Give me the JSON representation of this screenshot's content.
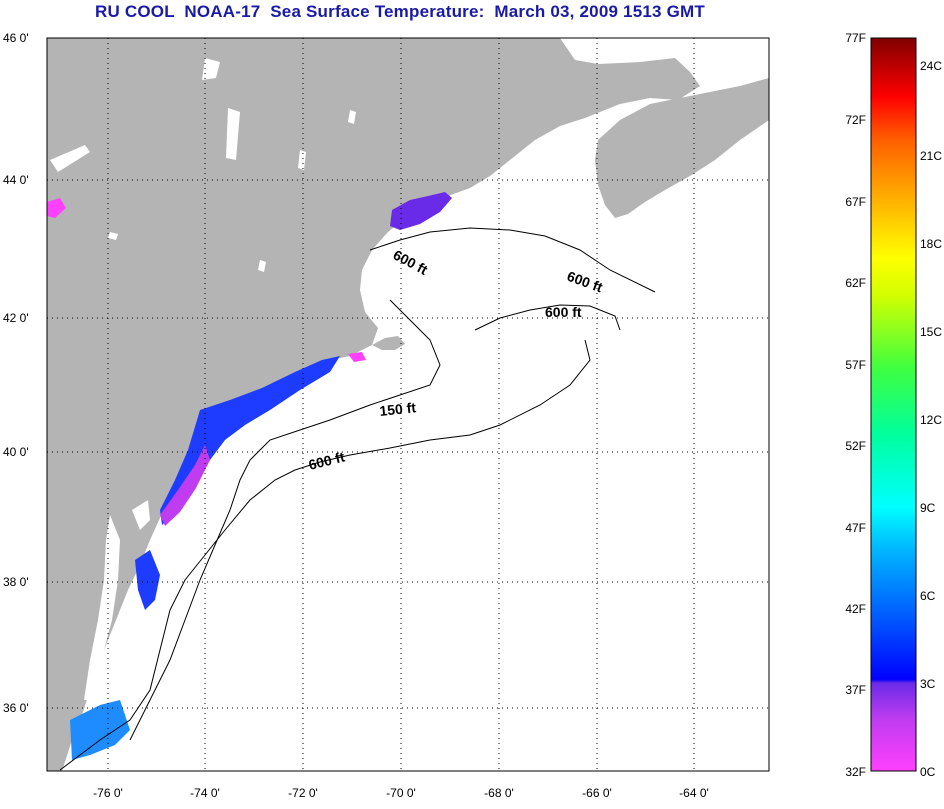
{
  "title": {
    "source": "RU COOL",
    "satellite": "NOAA-17",
    "product": "Sea Surface Temperature:",
    "date": "March 03, 2009 1513 GMT"
  },
  "axes": {
    "lat_labels": [
      "46 0'",
      "44 0'",
      "42 0'",
      "40 0'",
      "38 0'",
      "36 0'"
    ],
    "lon_labels": [
      "-76 0'",
      "-74 0'",
      "-72 0'",
      "-70 0'",
      "-68 0'",
      "-66 0'",
      "-64 0'"
    ]
  },
  "depth_contours": [
    "600 ft",
    "600 ft",
    "600 ft",
    "150 ft",
    "600 ft"
  ],
  "colorbar": {
    "fahrenheit": [
      "77F",
      "72F",
      "67F",
      "62F",
      "57F",
      "52F",
      "47F",
      "42F",
      "37F",
      "32F"
    ],
    "celsius": [
      "24C",
      "21C",
      "18C",
      "15C",
      "12C",
      "9C",
      "6C",
      "3C",
      "0C"
    ]
  },
  "colors": {
    "land": "#b4b4b4",
    "ocean": "#ffffff",
    "title_text": "#1a1aa8",
    "sst_cold": "#8a2be2",
    "sst_coastal": "#1e3cff"
  }
}
